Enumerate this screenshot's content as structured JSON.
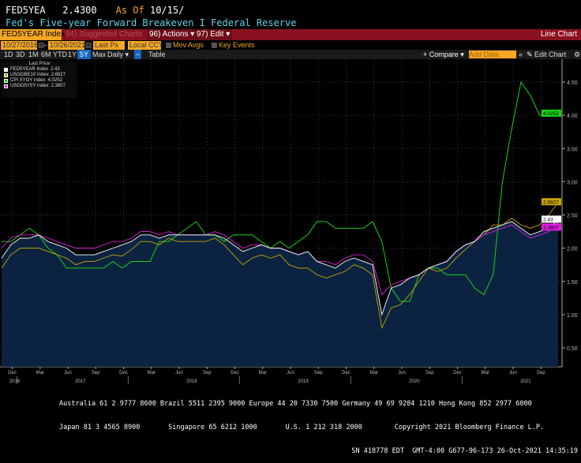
{
  "header": {
    "ticker": "FED5YEA",
    "value": "2.4300",
    "as_of_label": "As Of",
    "as_of_date": "10/15/",
    "title": "Fed's Five-year Forward Breakeven I Federal Reserve"
  },
  "toolbar": {
    "security": "FED5YEAR Index",
    "suggested": "94) Suggested Charts",
    "actions": "96) Actions ▾",
    "edit": "97) Edit ▾",
    "chart_type": "Line Chart"
  },
  "controls": {
    "start_date": "10/27/2016",
    "end_date": "10/26/2021",
    "field": "Last Px",
    "currency": "Local CCY",
    "mov_avgs": "Mov Avgs",
    "key_events": "Key Events",
    "compare": "+ Compare ▾",
    "add_data_placeholder": "Add Data",
    "edit_chart": "Edit Chart"
  },
  "periods": [
    "1D",
    "3D",
    "1M",
    "6M",
    "YTD",
    "1Y",
    "5Y",
    "Max"
  ],
  "active_period": "5Y",
  "frequency": "Daily ▾",
  "table_label": "Table",
  "footer": {
    "line1": "Australia 61 2 9777 8600 Brazil 5511 2395 9000 Europe 44 20 7330 7500 Germany 49 69 9204 1210 Hong Kong 852 2977 6000",
    "line2": "Japan 81 3 4565 8900       Singapore 65 6212 1000       U.S. 1 212 318 2000        Copyright 2021 Bloomberg Finance L.P.",
    "line3": "SN 418778 EDT  GMT-4:00 G677-96-173 26-Oct-2021 14:35:19"
  },
  "chart_data": {
    "type": "line",
    "legend_title": "Last Price",
    "legend_position": "top-left",
    "ylim": [
      0.22,
      4.84
    ],
    "yticks": [
      "0.50",
      "1.00",
      "1.50",
      "2.00",
      "2.50",
      "3.00",
      "3.50",
      "4.00",
      "4.50"
    ],
    "x_start": "Oct 2016",
    "x_frequency": "monthly",
    "xticks": [
      {
        "label": "Dec",
        "m": 2
      },
      {
        "label": "Mar",
        "m": 5
      },
      {
        "label": "Jun",
        "m": 8
      },
      {
        "label": "Sep",
        "m": 11
      },
      {
        "label": "Dec",
        "m": 14
      },
      {
        "label": "Mar",
        "m": 17
      },
      {
        "label": "Jun",
        "m": 20
      },
      {
        "label": "Sep",
        "m": 23
      },
      {
        "label": "Dec",
        "m": 26
      },
      {
        "label": "Mar",
        "m": 29
      },
      {
        "label": "Jun",
        "m": 32
      },
      {
        "label": "Sep",
        "m": 35
      },
      {
        "label": "Dec",
        "m": 38
      },
      {
        "label": "Mar",
        "m": 41
      },
      {
        "label": "Jun",
        "m": 44
      },
      {
        "label": "Sep",
        "m": 47
      },
      {
        "label": "Dec",
        "m": 50
      },
      {
        "label": "Mar",
        "m": 53
      },
      {
        "label": "Jun",
        "m": 56
      },
      {
        "label": "Sep",
        "m": 59
      }
    ],
    "years": [
      {
        "label": "2016",
        "m": 1.4
      },
      {
        "label": "2017",
        "m": 8.5
      },
      {
        "label": "2018",
        "m": 20.5
      },
      {
        "label": "2019",
        "m": 32.5
      },
      {
        "label": "2020",
        "m": 44.5
      },
      {
        "label": "2021",
        "m": 56.5
      }
    ],
    "series": [
      {
        "name": "FED5YEAR Index",
        "last": "2.43",
        "color": "#ffffff",
        "fill": true,
        "values": [
          1.85,
          2.05,
          2.15,
          2.15,
          2.2,
          2.1,
          2.05,
          2.0,
          1.9,
          1.9,
          1.9,
          1.95,
          2.0,
          2.05,
          2.1,
          2.2,
          2.2,
          2.15,
          2.2,
          2.2,
          2.2,
          2.2,
          2.2,
          2.2,
          2.15,
          2.05,
          1.95,
          2.0,
          2.05,
          2.0,
          2.0,
          1.95,
          1.9,
          1.95,
          1.8,
          1.75,
          1.7,
          1.8,
          1.85,
          1.8,
          1.75,
          1.0,
          1.4,
          1.45,
          1.55,
          1.6,
          1.7,
          1.75,
          1.8,
          1.95,
          2.05,
          2.1,
          2.25,
          2.3,
          2.35,
          2.4,
          2.3,
          2.2,
          2.25,
          2.3,
          2.43
        ]
      },
      {
        "name": "USGGBE10 Index",
        "last": "2.6927",
        "color": "#c9a400",
        "values": [
          1.7,
          1.9,
          2.0,
          2.0,
          2.0,
          1.95,
          1.9,
          1.85,
          1.75,
          1.8,
          1.8,
          1.85,
          1.9,
          1.88,
          1.98,
          2.1,
          2.1,
          2.05,
          2.15,
          2.1,
          2.1,
          2.1,
          2.1,
          2.15,
          2.05,
          1.9,
          1.75,
          1.85,
          1.9,
          1.85,
          1.9,
          1.75,
          1.7,
          1.7,
          1.6,
          1.55,
          1.6,
          1.65,
          1.75,
          1.7,
          1.6,
          0.8,
          1.1,
          1.15,
          1.3,
          1.5,
          1.7,
          1.65,
          1.7,
          1.85,
          1.98,
          2.1,
          2.2,
          2.35,
          2.35,
          2.45,
          2.35,
          2.3,
          2.35,
          2.5,
          2.69
        ]
      },
      {
        "name": "CPI XYOY Index",
        "last": "4.0252",
        "color": "#18d018",
        "values": [
          2.1,
          2.1,
          2.2,
          2.3,
          2.2,
          2.0,
          1.9,
          1.7,
          1.7,
          1.7,
          1.7,
          1.7,
          1.8,
          1.7,
          1.8,
          1.8,
          1.8,
          2.1,
          2.1,
          2.2,
          2.3,
          2.4,
          2.2,
          2.2,
          2.1,
          2.2,
          2.2,
          2.2,
          2.1,
          2.0,
          2.1,
          2.0,
          2.1,
          2.2,
          2.4,
          2.4,
          2.3,
          2.3,
          2.3,
          2.3,
          2.4,
          2.1,
          1.4,
          1.2,
          1.2,
          1.6,
          1.7,
          1.7,
          1.6,
          1.6,
          1.6,
          1.4,
          1.3,
          1.6,
          3.0,
          3.8,
          4.5,
          4.3,
          4.0,
          4.03
        ]
      },
      {
        "name": "USGG5Y5Y Index",
        "last": "2.3807",
        "color": "#e020e0",
        "values": [
          2.0,
          2.15,
          2.2,
          2.2,
          2.2,
          2.15,
          2.1,
          2.05,
          2.0,
          2.0,
          2.0,
          2.05,
          2.1,
          2.1,
          2.15,
          2.25,
          2.25,
          2.2,
          2.25,
          2.2,
          2.2,
          2.2,
          2.2,
          2.25,
          2.2,
          2.1,
          2.0,
          2.05,
          2.05,
          2.0,
          2.0,
          1.95,
          1.9,
          1.95,
          1.8,
          1.8,
          1.75,
          1.85,
          1.9,
          1.9,
          1.8,
          1.3,
          1.45,
          1.5,
          1.55,
          1.6,
          1.7,
          1.75,
          1.8,
          1.95,
          2.05,
          2.1,
          2.2,
          2.25,
          2.3,
          2.35,
          2.25,
          2.15,
          2.2,
          2.25,
          2.38
        ]
      }
    ]
  }
}
